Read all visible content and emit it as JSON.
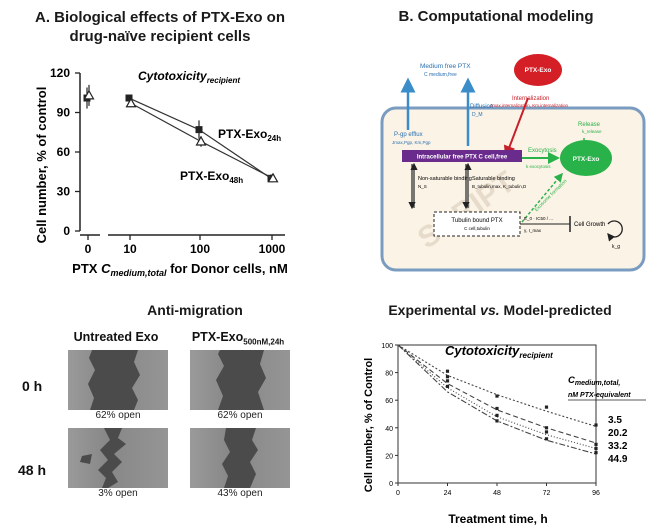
{
  "panel_a": {
    "title_line1": "A. Biological effects of PTX-Exo on",
    "title_line2": "drug-naïve recipient cells",
    "chart_title_main": "Cytotoxicity",
    "chart_title_sub": "recipient",
    "ylabel": "Cell number, % of control",
    "xlabel_prefix": "PTX ",
    "xlabel_var": "C",
    "xlabel_sub": "medium,total",
    "xlabel_suffix": " for Donor cells, nM",
    "series_label_24_main": "PTX-Exo",
    "series_label_24_sub": "24h",
    "series_label_48_main": "PTX-Exo",
    "series_label_48_sub": "48h"
  },
  "chart_data": [
    {
      "id": "cytotox-donor",
      "type": "line",
      "title": "Cytotoxicity recipient",
      "xlabel": "PTX C medium,total for Donor cells, nM",
      "ylabel": "Cell number, % of control",
      "xscale": "log",
      "ylim": [
        0,
        120
      ],
      "yticks": [
        0,
        30,
        60,
        90,
        120
      ],
      "xticks": [
        "0",
        "10",
        "100",
        "1000"
      ],
      "series": [
        {
          "name": "PTX-Exo 24h",
          "marker": "square",
          "x": [
            0,
            10,
            100,
            1000
          ],
          "y": [
            101,
            101,
            77,
            40
          ],
          "err": [
            8,
            2,
            7,
            3
          ]
        },
        {
          "name": "PTX-Exo 48h",
          "marker": "triangle",
          "x": [
            0,
            10,
            100,
            1000
          ],
          "y": [
            103,
            97,
            68,
            40
          ],
          "err": [
            8,
            3,
            4,
            3
          ]
        }
      ]
    },
    {
      "id": "model-vs-exp",
      "type": "line",
      "title": "Cytotoxicity recipient",
      "xlabel": "Treatment time, h",
      "ylabel": "Cell number, % of Control",
      "xlim": [
        0,
        96
      ],
      "ylim": [
        0,
        100
      ],
      "xticks": [
        0,
        24,
        48,
        72,
        96
      ],
      "yticks": [
        0,
        20,
        40,
        60,
        80,
        100
      ],
      "legend_title": "C medium,total, nM PTX-equivalent",
      "series": [
        {
          "name": "3.5",
          "x": [
            0,
            24,
            48,
            72,
            96
          ],
          "model": [
            100,
            78,
            64,
            52,
            41
          ],
          "points": [
            81,
            63,
            55,
            42
          ]
        },
        {
          "name": "20.2",
          "x": [
            0,
            24,
            48,
            72,
            96
          ],
          "model": [
            100,
            72,
            53,
            40,
            29
          ],
          "points": [
            77,
            54,
            40,
            28
          ]
        },
        {
          "name": "33.2",
          "x": [
            0,
            24,
            48,
            72,
            96
          ],
          "model": [
            100,
            69,
            48,
            35,
            25
          ],
          "points": [
            74,
            49,
            37,
            25
          ]
        },
        {
          "name": "44.9",
          "x": [
            0,
            24,
            48,
            72,
            96
          ],
          "model": [
            100,
            66,
            45,
            31,
            21
          ],
          "points": [
            70,
            45,
            32,
            22
          ]
        }
      ]
    }
  ],
  "panel_b": {
    "title": "B. Computational modeling",
    "watermark": "SCRIPT",
    "medium_free_ptx": "Medium free PTX",
    "medium_free_ptx_sub": "C medium,free",
    "diffusion": "Diffusion",
    "diffusion_sub": "D_M",
    "ptx_exo_top": "PTX-Exo",
    "internalization": "Internalization",
    "internalization_sub": "Jmax,internalization, Km,internalization",
    "pgp_efflux": "P-gp efflux",
    "pgp_efflux_sub": "Jmax,Pgp, Km,Pgp",
    "release": "Release",
    "release_sub": "k_release",
    "intracellular_free": "Intracellular free PTX C cell,free",
    "exocytosis": "Exocytosis",
    "exocytosis_sub": "k exocytosis",
    "ptx_exo_cell": "PTX-Exo",
    "nonsat_binding": "Non-saturable binding",
    "nonsat_sub": "N_S",
    "sat_binding": "Saturable binding",
    "sat_sub": "B_tubulin,max, K_tubulin,D",
    "exosome_formation": "Exosome formation",
    "tubulin_bound": "Tubulin bound PTX",
    "tubulin_bound_sub": "C cell,tubulin",
    "growth_formula": "E_0 · IC50 / ...",
    "growth_formula2": "γ, I_max",
    "cell_growth": "Cell Growth",
    "kg": "k_g"
  },
  "panel_c": {
    "title": "Anti-migration",
    "col1": "Untreated Exo",
    "col2_main": "PTX-Exo",
    "col2_sub": "500nM,24h",
    "row1": "0 h",
    "row2": "48 h",
    "cap_1_1": "62% open",
    "cap_1_2": "62% open",
    "cap_2_1": "3% open",
    "cap_2_2": "43% open"
  },
  "panel_d": {
    "title_pre": "Experimental ",
    "title_vs": "vs.",
    "title_post": " Model-predicted",
    "chart_title_main": "Cytotoxicity",
    "chart_title_sub": "recipient",
    "ylabel": "Cell number, % of Control",
    "xlabel": "Treatment time, h",
    "legend_title_main": "C",
    "legend_title_sub": "medium,total,",
    "legend_title_line2": "nM PTX-equivalent"
  },
  "colors": {
    "blue_arrow": "#3a8dc8",
    "red_arrow": "#c8202a",
    "green": "#2ab24a",
    "purple": "#6a2c8c",
    "cell_bg": "#fbf3e6",
    "cell_border": "#7a9cc0"
  }
}
